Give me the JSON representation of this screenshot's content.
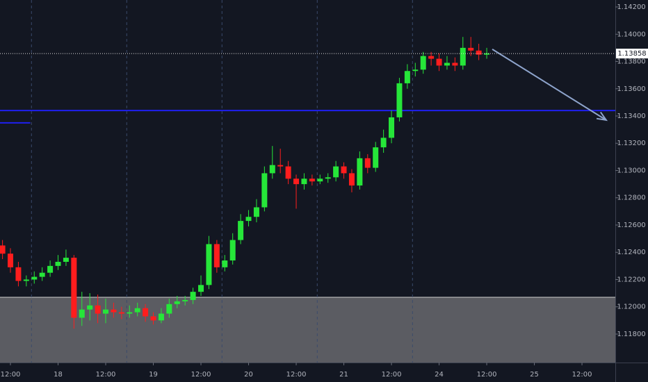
{
  "chart_data": {
    "type": "candlestick",
    "up_color": "#26e639",
    "down_color": "#ff1d1d",
    "background": "#131722",
    "xlim": [
      9.37,
      164.4
    ],
    "ylim": [
      1.11591,
      1.14251
    ],
    "xticks": [
      {
        "value": 12,
        "label": "12:00"
      },
      {
        "value": 24,
        "label": "18"
      },
      {
        "value": 36,
        "label": "12:00"
      },
      {
        "value": 48,
        "label": "19"
      },
      {
        "value": 60,
        "label": "12:00"
      },
      {
        "value": 72,
        "label": "20"
      },
      {
        "value": 84,
        "label": "12:00"
      },
      {
        "value": 96,
        "label": "21"
      },
      {
        "value": 108,
        "label": "12:00"
      },
      {
        "value": 120,
        "label": "24"
      },
      {
        "value": 132,
        "label": "12:00"
      },
      {
        "value": 144,
        "label": "25"
      },
      {
        "value": 156,
        "label": "12:00"
      }
    ],
    "yticks": [
      {
        "value": 1.118,
        "label": "1.11800"
      },
      {
        "value": 1.12,
        "label": "1.12000"
      },
      {
        "value": 1.122,
        "label": "1.12200"
      },
      {
        "value": 1.124,
        "label": "1.12400"
      },
      {
        "value": 1.126,
        "label": "1.12600"
      },
      {
        "value": 1.128,
        "label": "1.12800"
      },
      {
        "value": 1.13,
        "label": "1.13000"
      },
      {
        "value": 1.132,
        "label": "1.13200"
      },
      {
        "value": 1.134,
        "label": "1.13400"
      },
      {
        "value": 1.136,
        "label": "1.13600"
      },
      {
        "value": 1.138,
        "label": "1.13800"
      },
      {
        "value": 1.14,
        "label": "1.14000"
      },
      {
        "value": 1.142,
        "label": "1.14200"
      }
    ],
    "session_lines": [
      17.3,
      41.3,
      65.3,
      89.3,
      113.3
    ],
    "x": [
      10,
      12,
      14,
      16,
      18,
      20,
      22,
      24,
      26,
      28,
      30,
      32,
      34,
      36,
      38,
      40,
      42,
      44,
      46,
      48,
      50,
      52,
      54,
      56,
      58,
      60,
      62,
      64,
      66,
      68,
      70,
      72,
      74,
      76,
      78,
      80,
      82,
      84,
      86,
      88,
      90,
      92,
      94,
      96,
      98,
      100,
      102,
      104,
      106,
      108,
      110,
      112,
      114,
      116,
      118,
      120,
      122,
      124,
      126,
      128,
      130,
      132
    ],
    "open": [
      1.1245,
      1.1239,
      1.1229,
      1.1219,
      1.122,
      1.1222,
      1.1225,
      1.123,
      1.1233,
      1.1236,
      1.1192,
      1.1198,
      1.1201,
      1.1195,
      1.1198,
      1.1196,
      1.1195,
      1.1196,
      1.1199,
      1.1193,
      1.119,
      1.1195,
      1.1202,
      1.1204,
      1.1205,
      1.1211,
      1.1216,
      1.1246,
      1.1229,
      1.1234,
      1.1249,
      1.1263,
      1.1266,
      1.1273,
      1.1298,
      1.1304,
      1.1303,
      1.1294,
      1.129,
      1.1294,
      1.1292,
      1.1294,
      1.1295,
      1.1303,
      1.1298,
      1.1289,
      1.1309,
      1.1302,
      1.1317,
      1.1324,
      1.1339,
      1.1364,
      1.1373,
      1.1374,
      1.1384,
      1.1382,
      1.1377,
      1.1379,
      1.1377,
      1.139,
      1.1388,
      1.1385
    ],
    "high": [
      1.1249,
      1.1243,
      1.1233,
      1.1223,
      1.1226,
      1.1229,
      1.1234,
      1.1238,
      1.1242,
      1.1238,
      1.1211,
      1.121,
      1.1209,
      1.1206,
      1.1203,
      1.12,
      1.1201,
      1.1203,
      1.1202,
      1.1196,
      1.1199,
      1.1206,
      1.1208,
      1.1208,
      1.1214,
      1.1223,
      1.1252,
      1.1249,
      1.1238,
      1.1254,
      1.1268,
      1.1271,
      1.1279,
      1.1303,
      1.1318,
      1.1316,
      1.1307,
      1.1297,
      1.1298,
      1.1297,
      1.1297,
      1.1298,
      1.1307,
      1.1306,
      1.1301,
      1.1314,
      1.1312,
      1.1321,
      1.133,
      1.1344,
      1.1368,
      1.1378,
      1.1379,
      1.1387,
      1.1387,
      1.1386,
      1.1384,
      1.1383,
      1.1398,
      1.1398,
      1.1393,
      1.139
    ],
    "low": [
      1.1235,
      1.1225,
      1.1215,
      1.1215,
      1.1217,
      1.1219,
      1.1222,
      1.1227,
      1.123,
      1.1184,
      1.1186,
      1.119,
      1.1188,
      1.1188,
      1.1192,
      1.1191,
      1.1192,
      1.1193,
      1.1189,
      1.1187,
      1.1188,
      1.1192,
      1.1199,
      1.1201,
      1.1202,
      1.1208,
      1.1213,
      1.1225,
      1.1226,
      1.1231,
      1.1246,
      1.1259,
      1.1262,
      1.127,
      1.1294,
      1.1298,
      1.129,
      1.1272,
      1.1286,
      1.1289,
      1.129,
      1.1291,
      1.1292,
      1.1294,
      1.1284,
      1.1286,
      1.1298,
      1.1299,
      1.1313,
      1.132,
      1.1336,
      1.136,
      1.1369,
      1.1371,
      1.1377,
      1.1373,
      1.1374,
      1.1373,
      1.1374,
      1.1384,
      1.1381,
      1.1382
    ],
    "close": [
      1.1239,
      1.1229,
      1.1219,
      1.122,
      1.1222,
      1.1225,
      1.123,
      1.1233,
      1.1236,
      1.1192,
      1.1198,
      1.1201,
      1.1195,
      1.1198,
      1.1196,
      1.1195,
      1.1196,
      1.1199,
      1.1193,
      1.119,
      1.1195,
      1.1202,
      1.1204,
      1.1205,
      1.1211,
      1.1216,
      1.1246,
      1.1229,
      1.1234,
      1.1249,
      1.1263,
      1.1266,
      1.1273,
      1.1298,
      1.1304,
      1.1303,
      1.1294,
      1.129,
      1.1294,
      1.1292,
      1.1294,
      1.1295,
      1.1303,
      1.1298,
      1.1289,
      1.1309,
      1.1302,
      1.1317,
      1.1324,
      1.1339,
      1.1364,
      1.1373,
      1.1374,
      1.1384,
      1.1382,
      1.1377,
      1.1379,
      1.1377,
      1.139,
      1.1388,
      1.1385,
      1.1386
    ],
    "zone": {
      "top": 1.1207,
      "color": "#5b5c62"
    },
    "level_line": {
      "value": 1.1344,
      "color": "#1f1ff0"
    },
    "short_level": {
      "value": 1.1335,
      "x": [
        9.37,
        17.0
      ],
      "color": "#1f1ff0"
    },
    "arrow": {
      "x": [
        133.4,
        162.1
      ],
      "y": [
        1.1389,
        1.1337
      ],
      "color": "#8ea4cc"
    },
    "current_price": {
      "value": 1.13858,
      "label": "1.13858"
    }
  }
}
